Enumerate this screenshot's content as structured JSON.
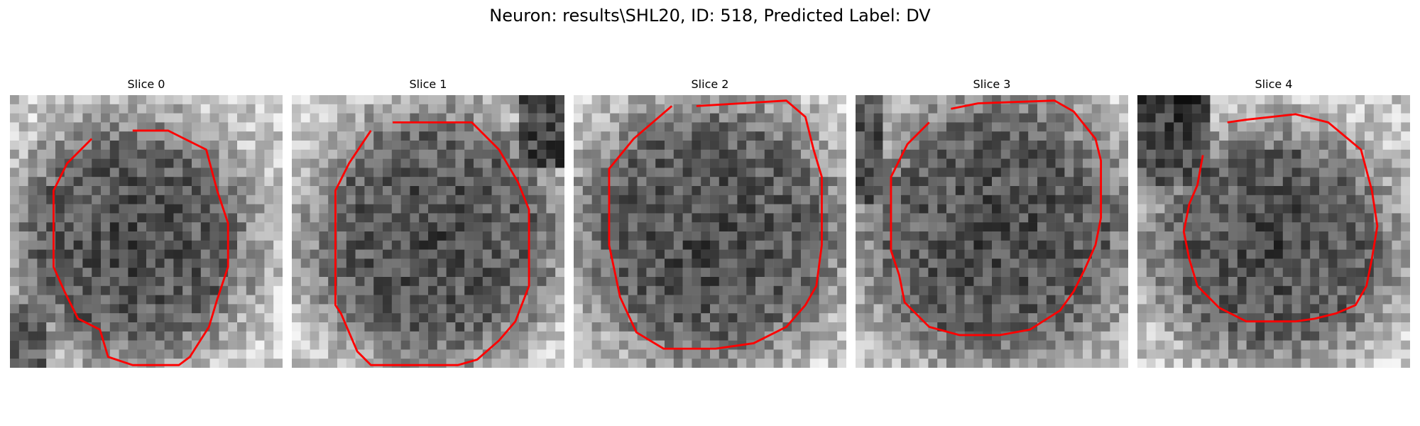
{
  "figure": {
    "title": "Neuron: results\\SHL20, ID: 518, Predicted Label: DV"
  },
  "contour_color": "#ff0000",
  "slices": [
    {
      "title": "Slice 0",
      "seed": 11,
      "dark_center": [
        0.45,
        0.53
      ],
      "dark_radius": [
        0.36,
        0.36
      ],
      "dark_corner": "bottom-left",
      "contour": [
        [
          0.45,
          0.13
        ],
        [
          0.58,
          0.13
        ],
        [
          0.72,
          0.2
        ],
        [
          0.76,
          0.35
        ],
        [
          0.8,
          0.47
        ],
        [
          0.8,
          0.63
        ],
        [
          0.76,
          0.75
        ],
        [
          0.73,
          0.85
        ],
        [
          0.66,
          0.96
        ],
        [
          0.62,
          0.99
        ],
        [
          0.45,
          0.99
        ],
        [
          0.36,
          0.96
        ],
        [
          0.33,
          0.86
        ],
        [
          0.25,
          0.82
        ],
        [
          0.2,
          0.72
        ],
        [
          0.16,
          0.63
        ],
        [
          0.16,
          0.35
        ],
        [
          0.21,
          0.25
        ],
        [
          0.3,
          0.16
        ]
      ]
    },
    {
      "title": "Slice 1",
      "seed": 23,
      "dark_center": [
        0.52,
        0.52
      ],
      "dark_radius": [
        0.38,
        0.38
      ],
      "dark_corner": "top-right",
      "contour": [
        [
          0.37,
          0.1
        ],
        [
          0.66,
          0.1
        ],
        [
          0.76,
          0.2
        ],
        [
          0.83,
          0.32
        ],
        [
          0.87,
          0.42
        ],
        [
          0.87,
          0.7
        ],
        [
          0.82,
          0.83
        ],
        [
          0.76,
          0.9
        ],
        [
          0.68,
          0.97
        ],
        [
          0.61,
          0.99
        ],
        [
          0.29,
          0.99
        ],
        [
          0.24,
          0.94
        ],
        [
          0.18,
          0.8
        ],
        [
          0.16,
          0.77
        ],
        [
          0.16,
          0.35
        ],
        [
          0.21,
          0.25
        ],
        [
          0.29,
          0.13
        ]
      ]
    },
    {
      "title": "Slice 2",
      "seed": 37,
      "dark_center": [
        0.5,
        0.5
      ],
      "dark_radius": [
        0.4,
        0.4
      ],
      "dark_corner": "none",
      "contour": [
        [
          0.45,
          0.04
        ],
        [
          0.78,
          0.02
        ],
        [
          0.85,
          0.08
        ],
        [
          0.88,
          0.2
        ],
        [
          0.91,
          0.3
        ],
        [
          0.91,
          0.55
        ],
        [
          0.89,
          0.7
        ],
        [
          0.85,
          0.77
        ],
        [
          0.78,
          0.85
        ],
        [
          0.66,
          0.91
        ],
        [
          0.52,
          0.93
        ],
        [
          0.33,
          0.93
        ],
        [
          0.23,
          0.87
        ],
        [
          0.17,
          0.74
        ],
        [
          0.13,
          0.55
        ],
        [
          0.13,
          0.27
        ],
        [
          0.22,
          0.16
        ],
        [
          0.36,
          0.04
        ]
      ]
    },
    {
      "title": "Slice 3",
      "seed": 53,
      "dark_center": [
        0.52,
        0.5
      ],
      "dark_radius": [
        0.41,
        0.41
      ],
      "dark_corner": "left",
      "contour": [
        [
          0.35,
          0.05
        ],
        [
          0.45,
          0.03
        ],
        [
          0.73,
          0.02
        ],
        [
          0.8,
          0.06
        ],
        [
          0.88,
          0.16
        ],
        [
          0.9,
          0.24
        ],
        [
          0.9,
          0.45
        ],
        [
          0.88,
          0.55
        ],
        [
          0.84,
          0.64
        ],
        [
          0.8,
          0.72
        ],
        [
          0.75,
          0.79
        ],
        [
          0.64,
          0.86
        ],
        [
          0.53,
          0.88
        ],
        [
          0.38,
          0.88
        ],
        [
          0.27,
          0.85
        ],
        [
          0.18,
          0.76
        ],
        [
          0.16,
          0.66
        ],
        [
          0.13,
          0.57
        ],
        [
          0.13,
          0.3
        ],
        [
          0.19,
          0.18
        ],
        [
          0.27,
          0.1
        ]
      ]
    },
    {
      "title": "Slice 4",
      "seed": 71,
      "dark_center": [
        0.5,
        0.55
      ],
      "dark_radius": [
        0.37,
        0.35
      ],
      "dark_corner": "top-left",
      "contour": [
        [
          0.33,
          0.1
        ],
        [
          0.4,
          0.09
        ],
        [
          0.58,
          0.07
        ],
        [
          0.7,
          0.1
        ],
        [
          0.82,
          0.2
        ],
        [
          0.86,
          0.35
        ],
        [
          0.88,
          0.48
        ],
        [
          0.86,
          0.6
        ],
        [
          0.84,
          0.7
        ],
        [
          0.8,
          0.77
        ],
        [
          0.73,
          0.8
        ],
        [
          0.65,
          0.82
        ],
        [
          0.58,
          0.83
        ],
        [
          0.4,
          0.83
        ],
        [
          0.3,
          0.78
        ],
        [
          0.22,
          0.7
        ],
        [
          0.19,
          0.6
        ],
        [
          0.17,
          0.5
        ],
        [
          0.19,
          0.4
        ],
        [
          0.22,
          0.33
        ],
        [
          0.24,
          0.22
        ]
      ]
    }
  ]
}
